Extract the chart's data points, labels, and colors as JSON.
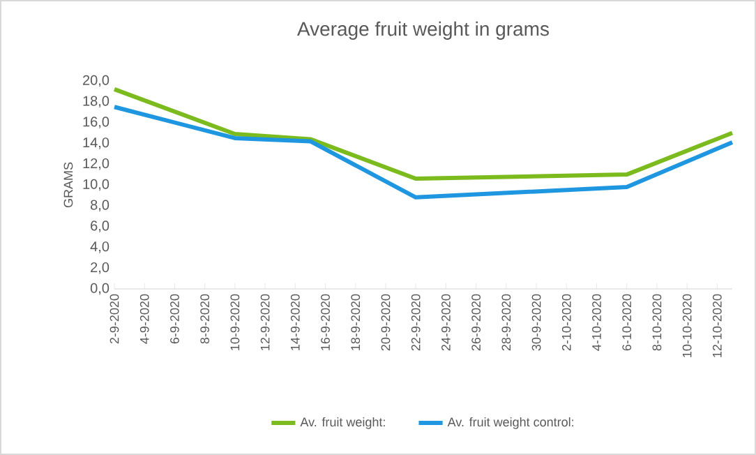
{
  "chart_data": {
    "type": "line",
    "title": "Average fruit weight in grams",
    "ylabel": "GRAMS",
    "series": [
      {
        "name": "Av. fruit weight:",
        "color": "#7cbb1e",
        "x": [
          "2020-09-02",
          "2020-09-10",
          "2020-09-15",
          "2020-09-22",
          "2020-10-06",
          "2020-10-13"
        ],
        "values": [
          19.2,
          14.9,
          14.4,
          10.6,
          11.0,
          15.0
        ]
      },
      {
        "name": "Av. fruit weight control:",
        "color": "#1f96e0",
        "x": [
          "2020-09-02",
          "2020-09-10",
          "2020-09-15",
          "2020-09-22",
          "2020-10-06",
          "2020-10-13"
        ],
        "values": [
          17.5,
          14.5,
          14.2,
          8.8,
          9.8,
          14.1
        ]
      }
    ],
    "xlim": [
      "2020-09-02",
      "2020-10-13"
    ],
    "xticks": [
      {
        "value": "2020-09-02",
        "label": "2-9-2020"
      },
      {
        "value": "2020-09-04",
        "label": "4-9-2020"
      },
      {
        "value": "2020-09-06",
        "label": "6-9-2020"
      },
      {
        "value": "2020-09-08",
        "label": "8-9-2020"
      },
      {
        "value": "2020-09-10",
        "label": "10-9-2020"
      },
      {
        "value": "2020-09-12",
        "label": "12-9-2020"
      },
      {
        "value": "2020-09-14",
        "label": "14-9-2020"
      },
      {
        "value": "2020-09-16",
        "label": "16-9-2020"
      },
      {
        "value": "2020-09-18",
        "label": "18-9-2020"
      },
      {
        "value": "2020-09-20",
        "label": "20-9-2020"
      },
      {
        "value": "2020-09-22",
        "label": "22-9-2020"
      },
      {
        "value": "2020-09-24",
        "label": "24-9-2020"
      },
      {
        "value": "2020-09-26",
        "label": "26-9-2020"
      },
      {
        "value": "2020-09-28",
        "label": "28-9-2020"
      },
      {
        "value": "2020-09-30",
        "label": "30-9-2020"
      },
      {
        "value": "2020-10-02",
        "label": "2-10-2020"
      },
      {
        "value": "2020-10-04",
        "label": "4-10-2020"
      },
      {
        "value": "2020-10-06",
        "label": "6-10-2020"
      },
      {
        "value": "2020-10-08",
        "label": "8-10-2020"
      },
      {
        "value": "2020-10-10",
        "label": "10-10-2020"
      },
      {
        "value": "2020-10-12",
        "label": "12-10-2020"
      }
    ],
    "ylim": [
      0,
      20
    ],
    "yticks": [
      {
        "value": 0,
        "label": "0,0"
      },
      {
        "value": 2,
        "label": "2,0"
      },
      {
        "value": 4,
        "label": "4,0"
      },
      {
        "value": 6,
        "label": "6,0"
      },
      {
        "value": 8,
        "label": "8,0"
      },
      {
        "value": 10,
        "label": "10,0"
      },
      {
        "value": 12,
        "label": "12,0"
      },
      {
        "value": 14,
        "label": "14,0"
      },
      {
        "value": 16,
        "label": "16,0"
      },
      {
        "value": 18,
        "label": "18,0"
      },
      {
        "value": 20,
        "label": "20,0"
      }
    ],
    "grid": false,
    "legend": "bottom",
    "marker": "none",
    "line_style": "solid"
  }
}
